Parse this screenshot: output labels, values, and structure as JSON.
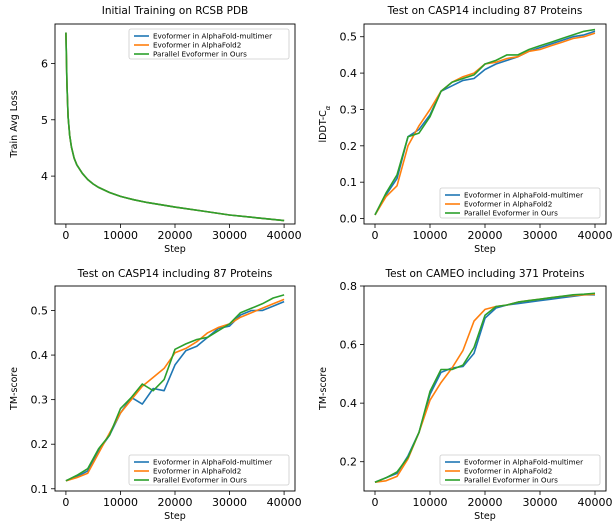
{
  "colors": {
    "multimer": "#1f77b4",
    "af2": "#ff7f0e",
    "ours": "#2ca02c"
  },
  "chart_data": [
    {
      "type": "line",
      "title": "Initial Training on RCSB PDB",
      "xlabel": "Step",
      "ylabel": "Train Avg Loss",
      "xlim": [
        -2000,
        42000
      ],
      "ylim": [
        3.15,
        6.7
      ],
      "xticks": [
        0,
        10000,
        20000,
        30000,
        40000
      ],
      "yticks": [
        4,
        5,
        6
      ],
      "legend": "top-right",
      "series": [
        {
          "name": "Evoformer in AlphaFold-multimer",
          "color": "multimer",
          "x": [
            0,
            200,
            400,
            700,
            1000,
            1500,
            2000,
            3000,
            4000,
            5000,
            6000,
            8000,
            10000,
            12500,
            15000,
            17500,
            20000,
            25000,
            30000,
            35000,
            40000
          ],
          "y": [
            6.55,
            5.6,
            5.05,
            4.72,
            4.52,
            4.32,
            4.2,
            4.05,
            3.94,
            3.86,
            3.8,
            3.71,
            3.64,
            3.58,
            3.53,
            3.49,
            3.45,
            3.38,
            3.31,
            3.26,
            3.21
          ]
        },
        {
          "name": "Evoformer in AlphaFold2",
          "color": "af2",
          "x": [
            0,
            200,
            400,
            700,
            1000,
            1500,
            2000,
            3000,
            4000,
            5000,
            6000,
            8000,
            10000,
            12500,
            15000,
            17500,
            20000,
            25000,
            30000,
            35000,
            40000
          ],
          "y": [
            6.55,
            5.6,
            5.05,
            4.72,
            4.52,
            4.32,
            4.2,
            4.05,
            3.94,
            3.86,
            3.8,
            3.71,
            3.64,
            3.58,
            3.53,
            3.49,
            3.45,
            3.38,
            3.31,
            3.26,
            3.21
          ]
        },
        {
          "name": "Parallel Evoformer in Ours",
          "color": "ours",
          "x": [
            0,
            200,
            400,
            700,
            1000,
            1500,
            2000,
            3000,
            4000,
            5000,
            6000,
            8000,
            10000,
            12500,
            15000,
            17500,
            20000,
            25000,
            30000,
            35000,
            40000
          ],
          "y": [
            6.55,
            5.6,
            5.05,
            4.72,
            4.52,
            4.32,
            4.2,
            4.05,
            3.94,
            3.86,
            3.8,
            3.71,
            3.64,
            3.58,
            3.53,
            3.49,
            3.45,
            3.38,
            3.31,
            3.26,
            3.21
          ]
        }
      ]
    },
    {
      "type": "line",
      "title": "Test on CASP14 including 87 Proteins",
      "xlabel": "Step",
      "ylabel": "lDDT-C",
      "ylabel_subscript": "α",
      "xlim": [
        -2000,
        42000
      ],
      "ylim": [
        -0.015,
        0.535
      ],
      "xticks": [
        0,
        10000,
        20000,
        30000,
        40000
      ],
      "yticks": [
        0.0,
        0.1,
        0.2,
        0.3,
        0.4,
        0.5
      ],
      "ytick_decimals": 1,
      "legend": "lower-right",
      "series": [
        {
          "name": "Evoformer in AlphaFold-multimer",
          "color": "multimer",
          "x": [
            0,
            2000,
            4000,
            6000,
            8000,
            10000,
            12000,
            14000,
            16000,
            18000,
            20000,
            22000,
            24000,
            26000,
            28000,
            30000,
            32000,
            34000,
            36000,
            38000,
            40000
          ],
          "y": [
            0.01,
            0.065,
            0.11,
            0.225,
            0.245,
            0.285,
            0.35,
            0.365,
            0.38,
            0.385,
            0.41,
            0.425,
            0.435,
            0.445,
            0.46,
            0.47,
            0.48,
            0.49,
            0.5,
            0.505,
            0.515
          ]
        },
        {
          "name": "Evoformer in AlphaFold2",
          "color": "af2",
          "x": [
            0,
            2000,
            4000,
            6000,
            8000,
            10000,
            12000,
            14000,
            16000,
            18000,
            20000,
            22000,
            24000,
            26000,
            28000,
            30000,
            32000,
            34000,
            36000,
            38000,
            40000
          ],
          "y": [
            0.01,
            0.06,
            0.09,
            0.2,
            0.255,
            0.3,
            0.35,
            0.375,
            0.39,
            0.4,
            0.425,
            0.43,
            0.44,
            0.445,
            0.46,
            0.465,
            0.475,
            0.485,
            0.495,
            0.5,
            0.51
          ]
        },
        {
          "name": "Parallel Evoformer in Ours",
          "color": "ours",
          "x": [
            0,
            2000,
            4000,
            6000,
            8000,
            10000,
            12000,
            14000,
            16000,
            18000,
            20000,
            22000,
            24000,
            26000,
            28000,
            30000,
            32000,
            34000,
            36000,
            38000,
            40000
          ],
          "y": [
            0.01,
            0.07,
            0.12,
            0.225,
            0.235,
            0.28,
            0.35,
            0.375,
            0.385,
            0.395,
            0.425,
            0.435,
            0.45,
            0.45,
            0.465,
            0.475,
            0.485,
            0.495,
            0.505,
            0.515,
            0.52
          ]
        }
      ]
    },
    {
      "type": "line",
      "title": "Test on CASP14 including 87 Proteins",
      "xlabel": "Step",
      "ylabel": "TM-score",
      "xlim": [
        -2000,
        42000
      ],
      "ylim": [
        0.095,
        0.555
      ],
      "xticks": [
        0,
        10000,
        20000,
        30000,
        40000
      ],
      "yticks": [
        0.1,
        0.2,
        0.3,
        0.4,
        0.5
      ],
      "ytick_decimals": 1,
      "legend": "lower-right",
      "series": [
        {
          "name": "Evoformer in AlphaFold-multimer",
          "color": "multimer",
          "x": [
            0,
            2000,
            4000,
            6000,
            8000,
            10000,
            12000,
            14000,
            16000,
            18000,
            20000,
            22000,
            24000,
            26000,
            28000,
            30000,
            32000,
            34000,
            36000,
            38000,
            40000
          ],
          "y": [
            0.118,
            0.127,
            0.14,
            0.185,
            0.22,
            0.27,
            0.305,
            0.29,
            0.325,
            0.32,
            0.378,
            0.41,
            0.42,
            0.44,
            0.46,
            0.465,
            0.49,
            0.5,
            0.5,
            0.51,
            0.52
          ]
        },
        {
          "name": "Evoformer in AlphaFold2",
          "color": "af2",
          "x": [
            0,
            2000,
            4000,
            6000,
            8000,
            10000,
            12000,
            14000,
            16000,
            18000,
            20000,
            22000,
            24000,
            26000,
            28000,
            30000,
            32000,
            34000,
            36000,
            38000,
            40000
          ],
          "y": [
            0.118,
            0.125,
            0.135,
            0.18,
            0.225,
            0.27,
            0.3,
            0.33,
            0.35,
            0.37,
            0.405,
            0.415,
            0.43,
            0.45,
            0.462,
            0.47,
            0.485,
            0.495,
            0.505,
            0.515,
            0.525
          ]
        },
        {
          "name": "Parallel Evoformer in Ours",
          "color": "ours",
          "x": [
            0,
            2000,
            4000,
            6000,
            8000,
            10000,
            12000,
            14000,
            16000,
            18000,
            20000,
            22000,
            24000,
            26000,
            28000,
            30000,
            32000,
            34000,
            36000,
            38000,
            40000
          ],
          "y": [
            0.118,
            0.13,
            0.145,
            0.19,
            0.22,
            0.28,
            0.305,
            0.335,
            0.32,
            0.345,
            0.413,
            0.425,
            0.435,
            0.44,
            0.455,
            0.47,
            0.495,
            0.505,
            0.515,
            0.528,
            0.535
          ]
        }
      ]
    },
    {
      "type": "line",
      "title": "Test on CAMEO including 371 Proteins",
      "xlabel": "Step",
      "ylabel": "TM-score",
      "xlim": [
        -2000,
        42000
      ],
      "ylim": [
        0.1,
        0.8
      ],
      "xticks": [
        0,
        10000,
        20000,
        30000,
        40000
      ],
      "yticks": [
        0.2,
        0.4,
        0.6,
        0.8
      ],
      "ytick_decimals": 1,
      "legend": "lower-right",
      "series": [
        {
          "name": "Evoformer in AlphaFold-multimer",
          "color": "multimer",
          "x": [
            0,
            2000,
            4000,
            6000,
            8000,
            10000,
            12000,
            14000,
            16000,
            18000,
            20000,
            22000,
            24000,
            26000,
            28000,
            30000,
            32000,
            34000,
            36000,
            38000,
            40000
          ],
          "y": [
            0.13,
            0.145,
            0.16,
            0.22,
            0.3,
            0.43,
            0.505,
            0.52,
            0.525,
            0.57,
            0.69,
            0.725,
            0.735,
            0.74,
            0.745,
            0.75,
            0.755,
            0.76,
            0.765,
            0.77,
            0.77
          ]
        },
        {
          "name": "Evoformer in AlphaFold2",
          "color": "af2",
          "x": [
            0,
            2000,
            4000,
            6000,
            8000,
            10000,
            12000,
            14000,
            16000,
            18000,
            20000,
            22000,
            24000,
            26000,
            28000,
            30000,
            32000,
            34000,
            36000,
            38000,
            40000
          ],
          "y": [
            0.13,
            0.135,
            0.15,
            0.21,
            0.3,
            0.41,
            0.47,
            0.52,
            0.58,
            0.68,
            0.72,
            0.73,
            0.735,
            0.745,
            0.75,
            0.755,
            0.76,
            0.765,
            0.768,
            0.77,
            0.772
          ]
        },
        {
          "name": "Parallel Evoformer in Ours",
          "color": "ours",
          "x": [
            0,
            2000,
            4000,
            6000,
            8000,
            10000,
            12000,
            14000,
            16000,
            18000,
            20000,
            22000,
            24000,
            26000,
            28000,
            30000,
            32000,
            34000,
            36000,
            38000,
            40000
          ],
          "y": [
            0.13,
            0.145,
            0.165,
            0.215,
            0.3,
            0.44,
            0.515,
            0.515,
            0.53,
            0.59,
            0.7,
            0.73,
            0.735,
            0.745,
            0.75,
            0.755,
            0.76,
            0.765,
            0.77,
            0.772,
            0.775
          ]
        }
      ]
    }
  ]
}
